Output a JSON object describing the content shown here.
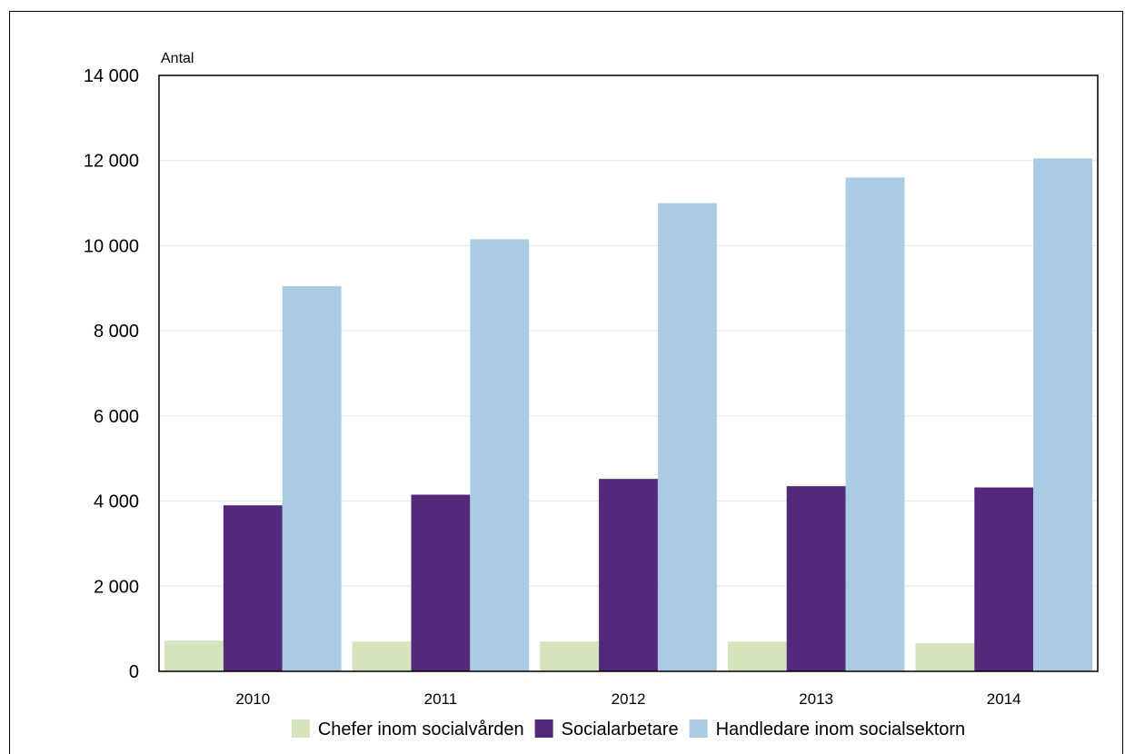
{
  "chart_data": {
    "type": "bar",
    "title": "",
    "ylabel": "Antal",
    "xlabel": "",
    "categories": [
      "2010",
      "2011",
      "2012",
      "2013",
      "2014"
    ],
    "ylim": [
      0,
      14000
    ],
    "yticks": [
      0,
      2000,
      4000,
      6000,
      8000,
      10000,
      12000,
      14000
    ],
    "ytick_labels": [
      "0",
      "2 000",
      "4 000",
      "6 000",
      "8 000",
      "10 000",
      "12 000",
      "14 000"
    ],
    "grid": true,
    "legend_position": "bottom",
    "series": [
      {
        "name": "Chefer inom socialvården",
        "color": "#d6e4bd",
        "values": [
          720,
          700,
          700,
          700,
          660
        ]
      },
      {
        "name": "Socialarbetare",
        "color": "#52297b",
        "values": [
          3900,
          4150,
          4520,
          4350,
          4320
        ]
      },
      {
        "name": "Handledare inom socialsektorn",
        "color": "#a9cce4",
        "values": [
          9050,
          10150,
          11000,
          11600,
          12050
        ]
      }
    ]
  }
}
